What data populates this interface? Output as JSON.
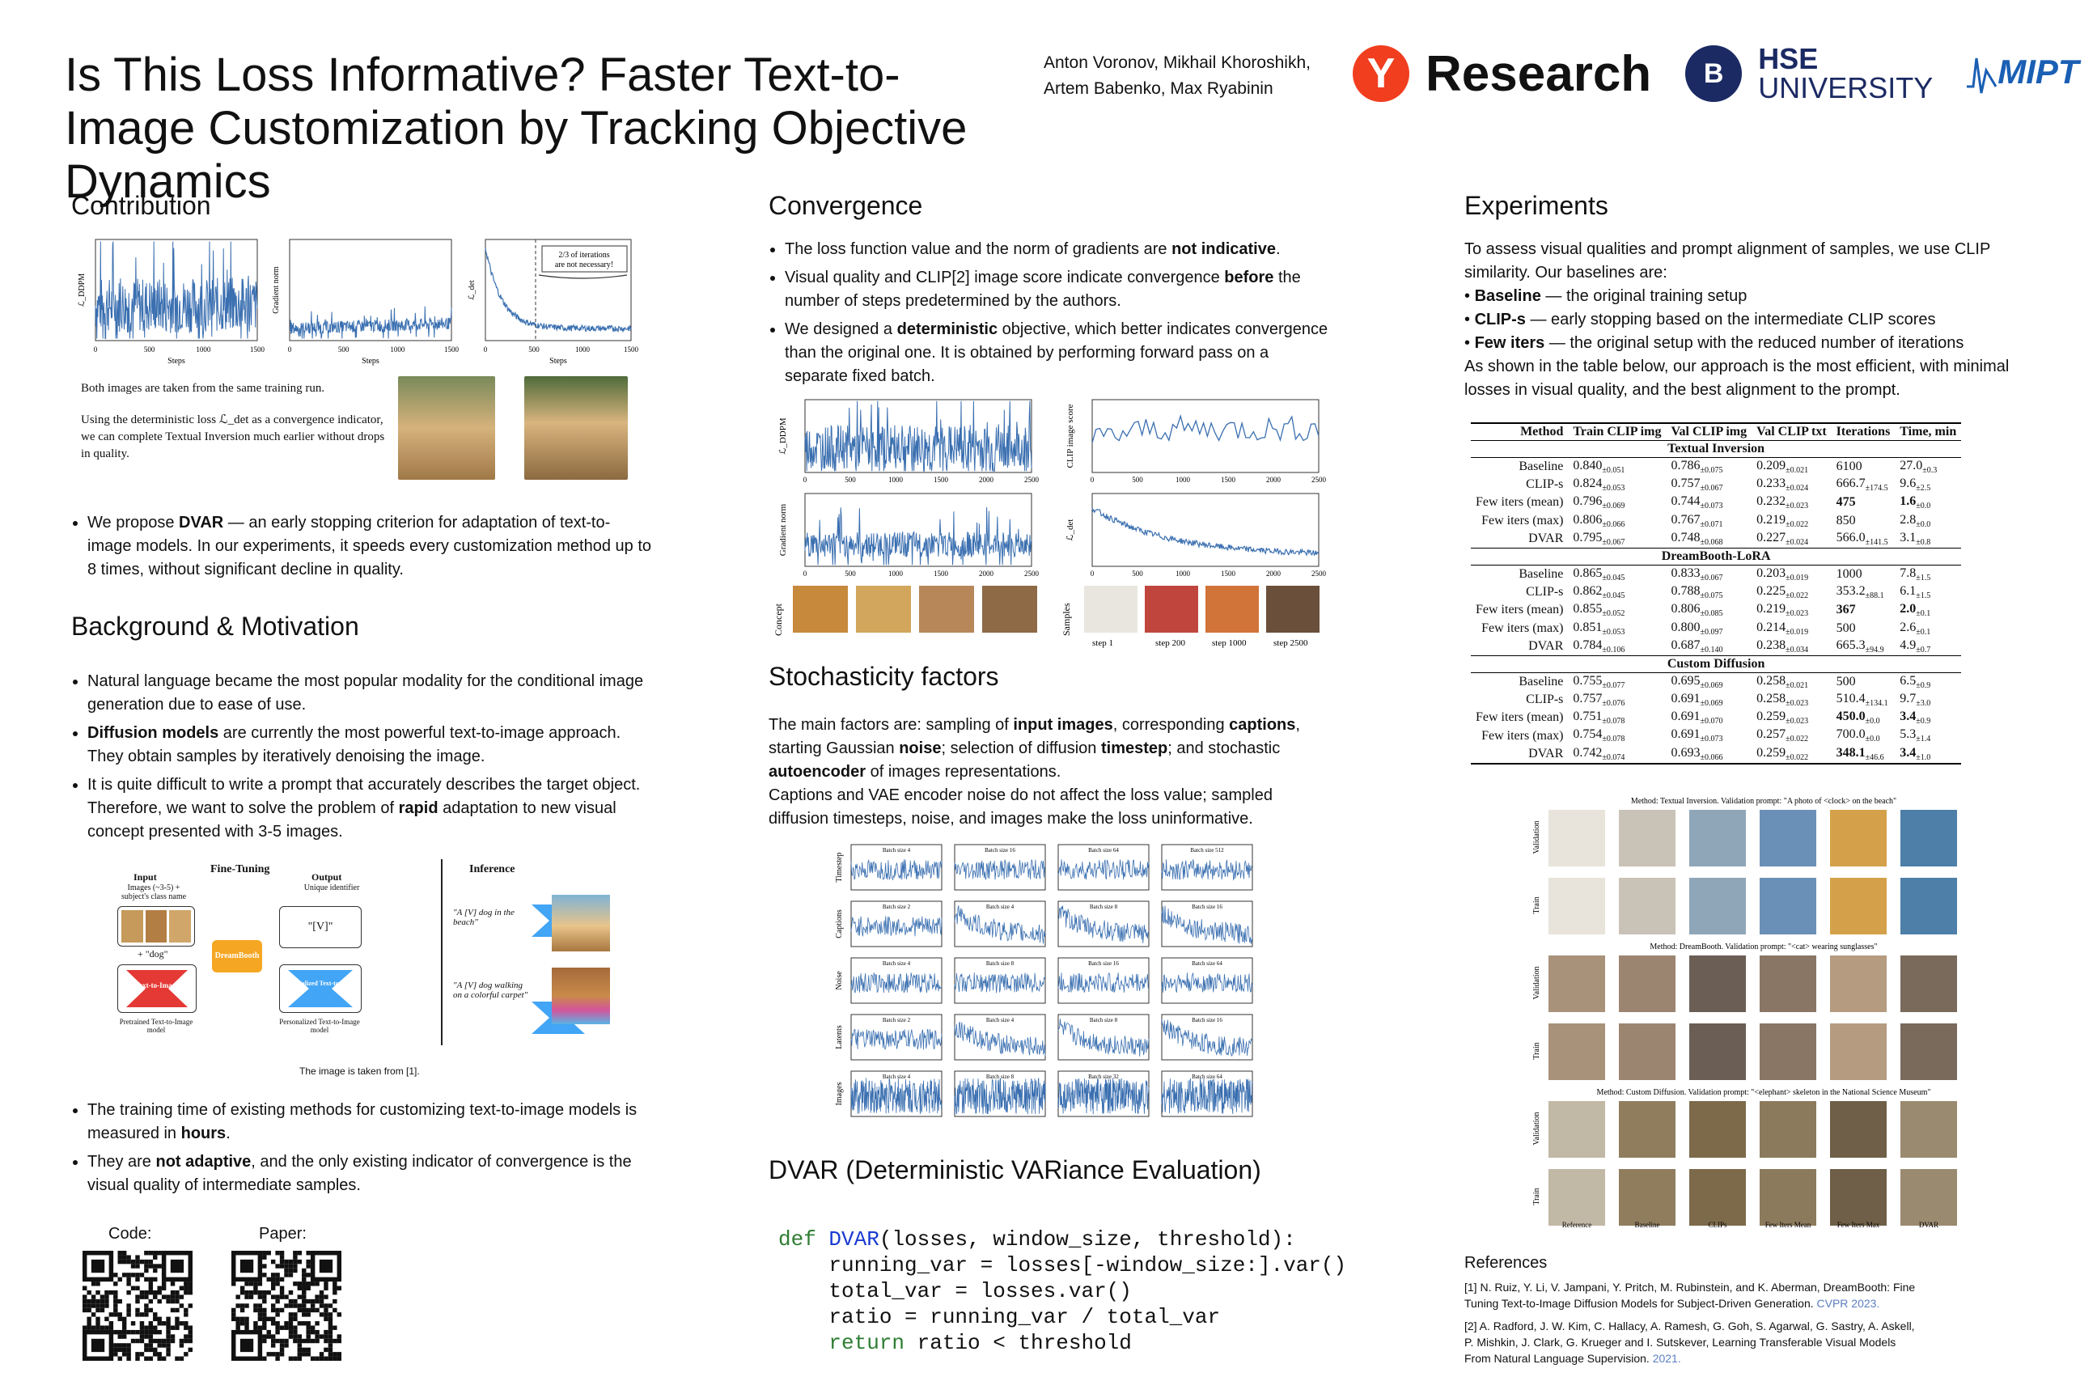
{
  "header": {
    "title": "Is This Loss Informative? Faster Text-to-Image Customization by Tracking Objective Dynamics",
    "authors_line1": "Anton Voronov, Mikhail Khoroshikh,",
    "authors_line2": "Artem Babenko, Max Ryabinin",
    "logo_yandex_letter": "Y",
    "logo_research": "Research",
    "logo_hse_mark": "B",
    "logo_hse_line1": "HSE",
    "logo_hse_line2": "UNIVERSITY",
    "logo_mipt": "MIPT"
  },
  "contribution": {
    "heading": "Contribution",
    "chart_y1": "ℒ_DDPM",
    "chart_y2": "Gradient norm",
    "chart_y3": "ℒ_det",
    "chart_x": "Steps",
    "annotation": "2/3 of iterations are not necessary!",
    "caption1": "Both images are taken from the same training run.",
    "caption2": "Using the deterministic loss ℒ_det as a convergence indicator, we can complete Textual Inversion much earlier without drops in quality.",
    "bullet": "We propose DVAR — an early stopping criterion for adaptation of text-to-image models. In our experiments, it speeds every customization method up to 8 times, without significant decline in quality.",
    "bullet_bold": "DVAR"
  },
  "background": {
    "heading": "Background & Motivation",
    "b1": "Natural language became the most popular modality for the conditional image generation due to ease of use.",
    "b2_bold": "Diffusion models",
    "b2": " are currently the most powerful text-to-image approach. They obtain samples by iteratively denoising the image.",
    "b3a": "It is quite difficult to write a prompt that accurately describes the target object. Therefore, we want to solve the problem of ",
    "b3_bold": "rapid",
    "b3b": " adaptation to new visual concept presented with 3-5 images.",
    "fig_finetune": "Fine-Tuning",
    "fig_inference": "Inference",
    "fig_input": "Input",
    "fig_input_desc": "Images (~3-5) + subject's class name",
    "fig_dog": "+ \"dog\"",
    "fig_output": "Output",
    "fig_output_desc": "Unique identifier",
    "fig_v": "\"[V]\"",
    "fig_dreambooth": "DreamBooth",
    "fig_t2i": "Text-to-Image",
    "fig_pt2i": "Personalized Text-to-Image",
    "fig_pretrained": "Pretrained Text-to-Image model",
    "fig_personalized": "Personalized Text-to-Image model",
    "fig_prompt1": "\"A [V] dog in the beach\"",
    "fig_prompt2": "\"A [V] dog walking on a colorful carpet\"",
    "fig_caption": "The image is taken from [1].",
    "b4a": "The training time of existing methods for customizing text-to-image models is measured in ",
    "b4_bold": "hours",
    "b4b": ".",
    "b5a": "They are ",
    "b5_bold": "not adaptive",
    "b5b": ", and the only existing indicator of convergence is the visual quality of intermediate samples.",
    "code_label": "Code:",
    "paper_label": "Paper:"
  },
  "convergence": {
    "heading": "Convergence",
    "b1a": "The loss function value and the norm of gradients are ",
    "b1_bold": "not indicative",
    "b1b": ".",
    "b2a": "Visual quality and CLIP[2] image score indicate convergence ",
    "b2_bold": "before",
    "b2b": " the number of steps predetermined by the authors.",
    "b3a": "We designed a ",
    "b3_bold": "deterministic",
    "b3b": " objective, which better indicates convergence than the original one. It is obtained by performing forward pass on a separate fixed batch.",
    "y_ddpm": "ℒ_DDPM",
    "y_clip": "CLIP image score",
    "y_grad": "Gradient norm",
    "y_det": "ℒ_det",
    "concept_label": "Concept",
    "samples_label": "Samples",
    "steps": [
      "step 1",
      "step 200",
      "step 1000",
      "step 2500"
    ]
  },
  "stochasticity": {
    "heading": "Stochasticity factors",
    "p1a": "The main factors are: sampling of ",
    "p1_b1": "input images",
    "p1b": ", corresponding ",
    "p1_b2": "captions",
    "p1c": ", starting Gaussian ",
    "p1_b3": "noise",
    "p1d": "; selection of diffusion ",
    "p1_b4": "timestep",
    "p1e": "; and stochastic ",
    "p1_b5": "autoencoder",
    "p1f": " of images representations.",
    "p2": "Captions and VAE encoder noise do not affect the loss value; sampled diffusion timesteps, noise, and images make the loss uninformative.",
    "row_labels": [
      "Timestep",
      "Captions",
      "Noise",
      "Latents",
      "Images"
    ],
    "batch_rows": [
      [
        "Batch size 4",
        "Batch size 16",
        "Batch size 64",
        "Batch size 512"
      ],
      [
        "Batch size 2",
        "Batch size 4",
        "Batch size 8",
        "Batch size 16"
      ],
      [
        "Batch size 4",
        "Batch size 8",
        "Batch size 16",
        "Batch size 64"
      ],
      [
        "Batch size 2",
        "Batch size 4",
        "Batch size 8",
        "Batch size 16"
      ],
      [
        "Batch size 4",
        "Batch size 8",
        "Batch size 32",
        "Batch size 64"
      ]
    ]
  },
  "dvar": {
    "heading": "DVAR (Deterministic VARiance Evaluation)",
    "line1_kw": "def ",
    "line1_fn": "DVAR",
    "line1_rest": "(losses, window_size, threshold):",
    "line2": "    running_var = losses[-window_size:].var()",
    "line3": "    total_var = losses.var()",
    "line4": "    ratio = running_var / total_var",
    "line5_kw": "    return",
    "line5_rest": " ratio < threshold"
  },
  "experiments": {
    "heading": "Experiments",
    "intro": "To assess visual qualities and prompt alignment of samples, we use CLIP similarity. Our baselines are:",
    "baseline_bold": "Baseline",
    "baseline_text": " — the original training setup",
    "clips_bold": "CLIP-s",
    "clips_text": " — early stopping based on the intermediate CLIP scores",
    "few_bold": "Few iters",
    "few_text": " — the original setup with the reduced number of iterations",
    "outro": "As shown in the table below, our approach is the most efficient, with minimal losses in visual quality, and the best alignment to the prompt.",
    "table": {
      "headers": [
        "Method",
        "Train CLIP img",
        "Val CLIP img",
        "Val CLIP txt",
        "Iterations",
        "Time, min"
      ],
      "groups": [
        {
          "name": "Textual Inversion",
          "rows": [
            [
              "Baseline",
              "0.840±0.051",
              "0.786±0.075",
              "0.209±0.021",
              "6100",
              "27.0±0.3"
            ],
            [
              "CLIP-s",
              "0.824±0.053",
              "0.757±0.067",
              "0.233±0.024",
              "666.7±174.5",
              "9.6±2.5"
            ],
            [
              "Few iters (mean)",
              "0.796±0.069",
              "0.744±0.073",
              "0.232±0.023",
              "475",
              "1.6±0.0"
            ],
            [
              "Few iters (max)",
              "0.806±0.066",
              "0.767±0.071",
              "0.219±0.022",
              "850",
              "2.8±0.0"
            ],
            [
              "DVAR",
              "0.795±0.067",
              "0.748±0.068",
              "0.227±0.024",
              "566.0±141.5",
              "3.1±0.8"
            ]
          ]
        },
        {
          "name": "DreamBooth-LoRA",
          "rows": [
            [
              "Baseline",
              "0.865±0.045",
              "0.833±0.067",
              "0.203±0.019",
              "1000",
              "7.8±1.5"
            ],
            [
              "CLIP-s",
              "0.862±0.045",
              "0.788±0.075",
              "0.225±0.022",
              "353.2±88.1",
              "6.1±1.5"
            ],
            [
              "Few iters (mean)",
              "0.855±0.052",
              "0.806±0.085",
              "0.219±0.023",
              "367",
              "2.0±0.1"
            ],
            [
              "Few iters (max)",
              "0.851±0.053",
              "0.800±0.097",
              "0.214±0.019",
              "500",
              "2.6±0.1"
            ],
            [
              "DVAR",
              "0.784±0.106",
              "0.687±0.140",
              "0.238±0.034",
              "665.3±94.9",
              "4.9±0.7"
            ]
          ]
        },
        {
          "name": "Custom Diffusion",
          "rows": [
            [
              "Baseline",
              "0.755±0.077",
              "0.695±0.069",
              "0.258±0.021",
              "500",
              "6.5±0.9"
            ],
            [
              "CLIP-s",
              "0.757±0.076",
              "0.691±0.069",
              "0.258±0.023",
              "510.4±134.1",
              "9.7±3.0"
            ],
            [
              "Few iters (mean)",
              "0.751±0.078",
              "0.691±0.070",
              "0.259±0.023",
              "450.0±0.0",
              "3.4±0.9"
            ],
            [
              "Few iters (max)",
              "0.754±0.078",
              "0.691±0.073",
              "0.257±0.022",
              "700.0±0.0",
              "5.3±1.4"
            ],
            [
              "DVAR",
              "0.742±0.074",
              "0.693±0.066",
              "0.259±0.022",
              "348.1±46.6",
              "3.4±1.0"
            ]
          ]
        }
      ]
    },
    "grid_captions": [
      "Method: Textual Inversion. Validation prompt: \"A photo of <clock> on the beach\"",
      "Method: DreamBooth. Validation prompt: \"<cat> wearing sunglasses\"",
      "Method: Custom Diffusion. Validation prompt: \"<elephant> skeleton in the National Science Museum\""
    ],
    "grid_row_labels": [
      "Validation",
      "Train"
    ],
    "grid_col_labels": [
      "Reference",
      "Baseline",
      "CLIPs",
      "Few Iters Mean",
      "Few Iters Max",
      "DVAR"
    ]
  },
  "references": {
    "heading": "References",
    "r1": "[1] N. Ruiz, Y. Li, V. Jampani, Y. Pritch, M. Rubinstein, and K. Aberman, DreamBooth: Fine Tuning Text-to-Image Diffusion Models for Subject-Driven Generation.",
    "r1_venue": "CVPR 2023.",
    "r2": "[2] A. Radford, J. W. Kim, C. Hallacy, A. Ramesh, G. Goh, S. Agarwal, G. Sastry, A. Askell, P. Mishkin, J. Clark, G. Krueger and I. Sutskever, Learning Transferable Visual Models From Natural Language Supervision.",
    "r2_venue": "2021."
  },
  "chart_data": [
    {
      "type": "line",
      "title": "",
      "xlabel": "Steps",
      "ylabel": "ℒ_DDPM",
      "xlim": [
        0,
        1500
      ],
      "ylim": [
        0,
        0.6
      ]
    },
    {
      "type": "line",
      "title": "",
      "xlabel": "Steps",
      "ylabel": "Gradient norm",
      "xlim": [
        0,
        1500
      ],
      "ylim": [
        0,
        0.1
      ]
    },
    {
      "type": "line",
      "title": "",
      "xlabel": "Steps",
      "ylabel": "ℒ_det",
      "xlim": [
        0,
        1500
      ],
      "ylim": [
        0.17975,
        0.181
      ],
      "annotation": "2/3 of iterations are not necessary!"
    }
  ]
}
